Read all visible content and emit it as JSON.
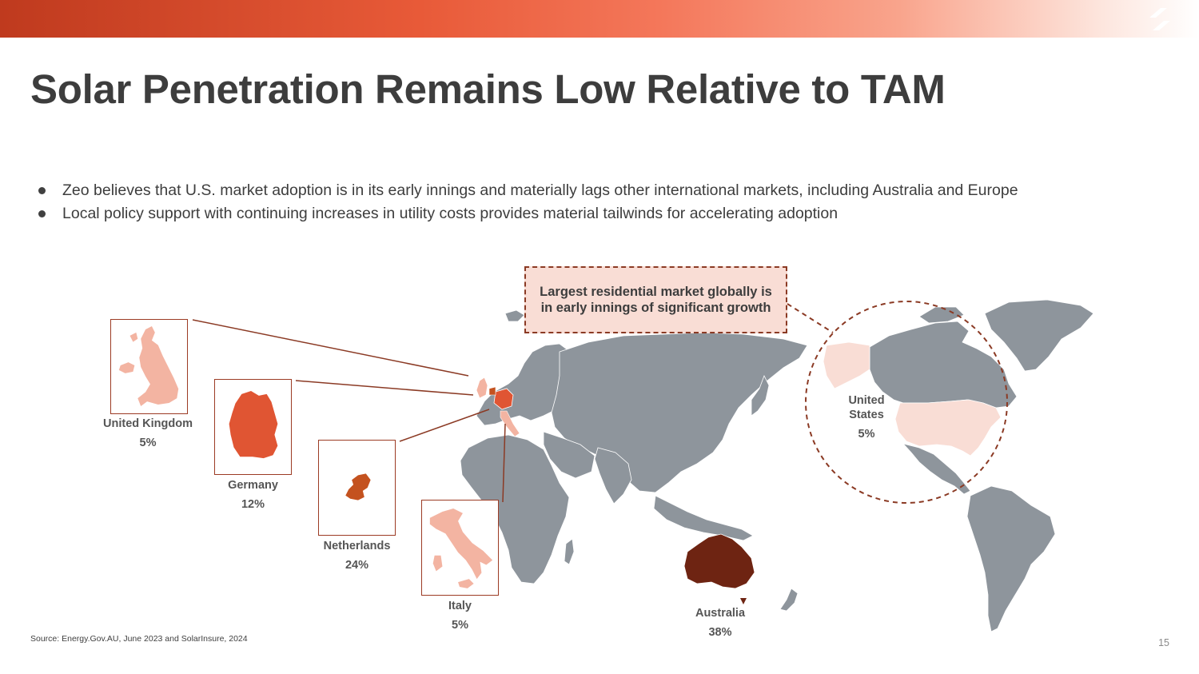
{
  "slide": {
    "title": "Solar Penetration Remains Low Relative to TAM",
    "bullets": [
      "Zeo believes that U.S. market adoption is in its early innings and materially lags other international markets, including Australia and Europe",
      "Local policy support with continuing increases in utility costs provides material tailwinds for accelerating adoption"
    ],
    "callout": "Largest residential market globally is in early innings of significant growth",
    "source": "Source:  Energy.Gov.AU, June 2023 and SolarInsure, 2024",
    "page_number": "15"
  },
  "countries": {
    "uk": {
      "name": "United Kingdom",
      "penetration": "5%"
    },
    "germany": {
      "name": "Germany",
      "penetration": "12%"
    },
    "netherlands": {
      "name": "Netherlands",
      "penetration": "24%"
    },
    "italy": {
      "name": "Italy",
      "penetration": "5%"
    },
    "australia": {
      "name": "Australia",
      "penetration": "38%"
    },
    "us": {
      "name_line1": "United",
      "name_line2": "States",
      "penetration": "5%"
    }
  },
  "colors": {
    "brand_red": "#e05533",
    "map_gray": "#8e959c",
    "light_salmon": "#f3b4a2",
    "pale_pink": "#f9ddd5",
    "dark_brown": "#6e2412",
    "connector": "#8b3a24"
  },
  "icons": {
    "logo": "zeo-slash-logo-icon"
  }
}
